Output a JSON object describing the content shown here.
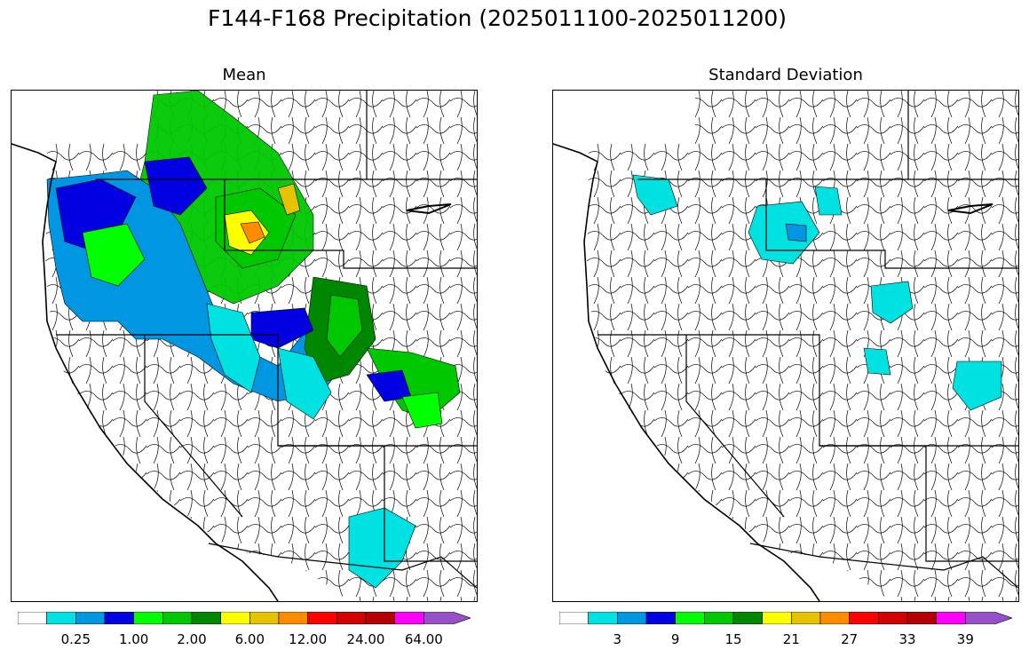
{
  "title": "F144-F168 Precipitation (2025011100-2025011200)",
  "panels": [
    {
      "name": "mean",
      "title": "Mean",
      "colorbar": {
        "colors": [
          "#ffffff",
          "#00e1e1",
          "#0096e1",
          "#0000e1",
          "#00ff00",
          "#00c800",
          "#008700",
          "#ffff00",
          "#e6c300",
          "#ff8c00",
          "#ff0000",
          "#d20000",
          "#b40000",
          "#ff00ff",
          "#9650c8"
        ],
        "tick_labels": [
          "0.25",
          "1.00",
          "2.00",
          "6.00",
          "12.00",
          "24.00",
          "64.00"
        ],
        "extend": "max"
      }
    },
    {
      "name": "stddev",
      "title": "Standard Deviation",
      "colorbar": {
        "colors": [
          "#ffffff",
          "#00e1e1",
          "#0096e1",
          "#0000e1",
          "#00ff00",
          "#00c800",
          "#008700",
          "#ffff00",
          "#e6c300",
          "#ff8c00",
          "#ff0000",
          "#d20000",
          "#b40000",
          "#ff00ff",
          "#9650c8"
        ],
        "tick_labels": [
          "3",
          "9",
          "15",
          "21",
          "27",
          "33",
          "39"
        ],
        "extend": "max"
      }
    }
  ]
}
